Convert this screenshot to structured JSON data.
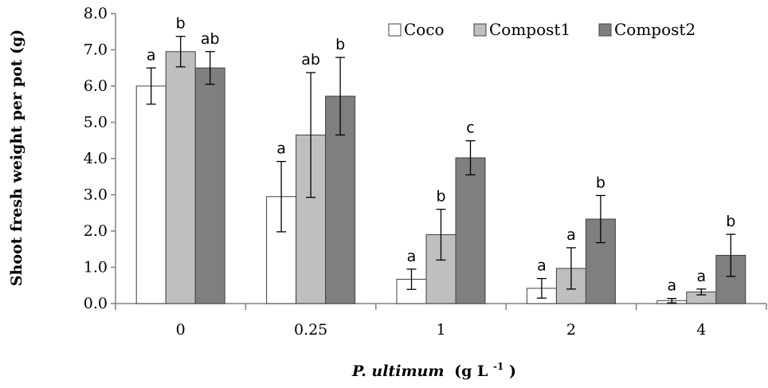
{
  "chart_data": {
    "type": "bar",
    "title": "",
    "xlabel_italic": "P. ultimum",
    "xlabel_unit": "(g L",
    "xlabel_sup": "-1",
    "xlabel_close": ")",
    "ylabel": "Shoot fresh weight per pot (g)",
    "ylim": [
      0,
      8
    ],
    "ytick_labels": [
      "0.0",
      "1.0",
      "2.0",
      "3.0",
      "4.0",
      "5.0",
      "6.0",
      "7.0",
      "8.0"
    ],
    "categories": [
      "0",
      "0.25",
      "1",
      "2",
      "4"
    ],
    "grid": false,
    "legend_position": "top-right",
    "series": [
      {
        "name": "Coco",
        "color": "#ffffff",
        "values": [
          6.0,
          2.95,
          0.67,
          0.42,
          0.08
        ],
        "errors": [
          0.5,
          0.97,
          0.28,
          0.27,
          0.06
        ],
        "letters": [
          "a",
          "a",
          "a",
          "a",
          "a"
        ]
      },
      {
        "name": "Compost1",
        "color": "#bfbfbf",
        "values": [
          6.95,
          4.65,
          1.9,
          0.97,
          0.32
        ],
        "errors": [
          0.42,
          1.72,
          0.7,
          0.57,
          0.08
        ],
        "letters": [
          "b",
          "ab",
          "b",
          "a",
          "a"
        ]
      },
      {
        "name": "Compost2",
        "color": "#7f7f7f",
        "values": [
          6.5,
          5.72,
          4.02,
          2.33,
          1.33
        ],
        "errors": [
          0.45,
          1.07,
          0.47,
          0.65,
          0.58
        ],
        "letters": [
          "ab",
          "b",
          "c",
          "b",
          "b"
        ]
      }
    ]
  }
}
